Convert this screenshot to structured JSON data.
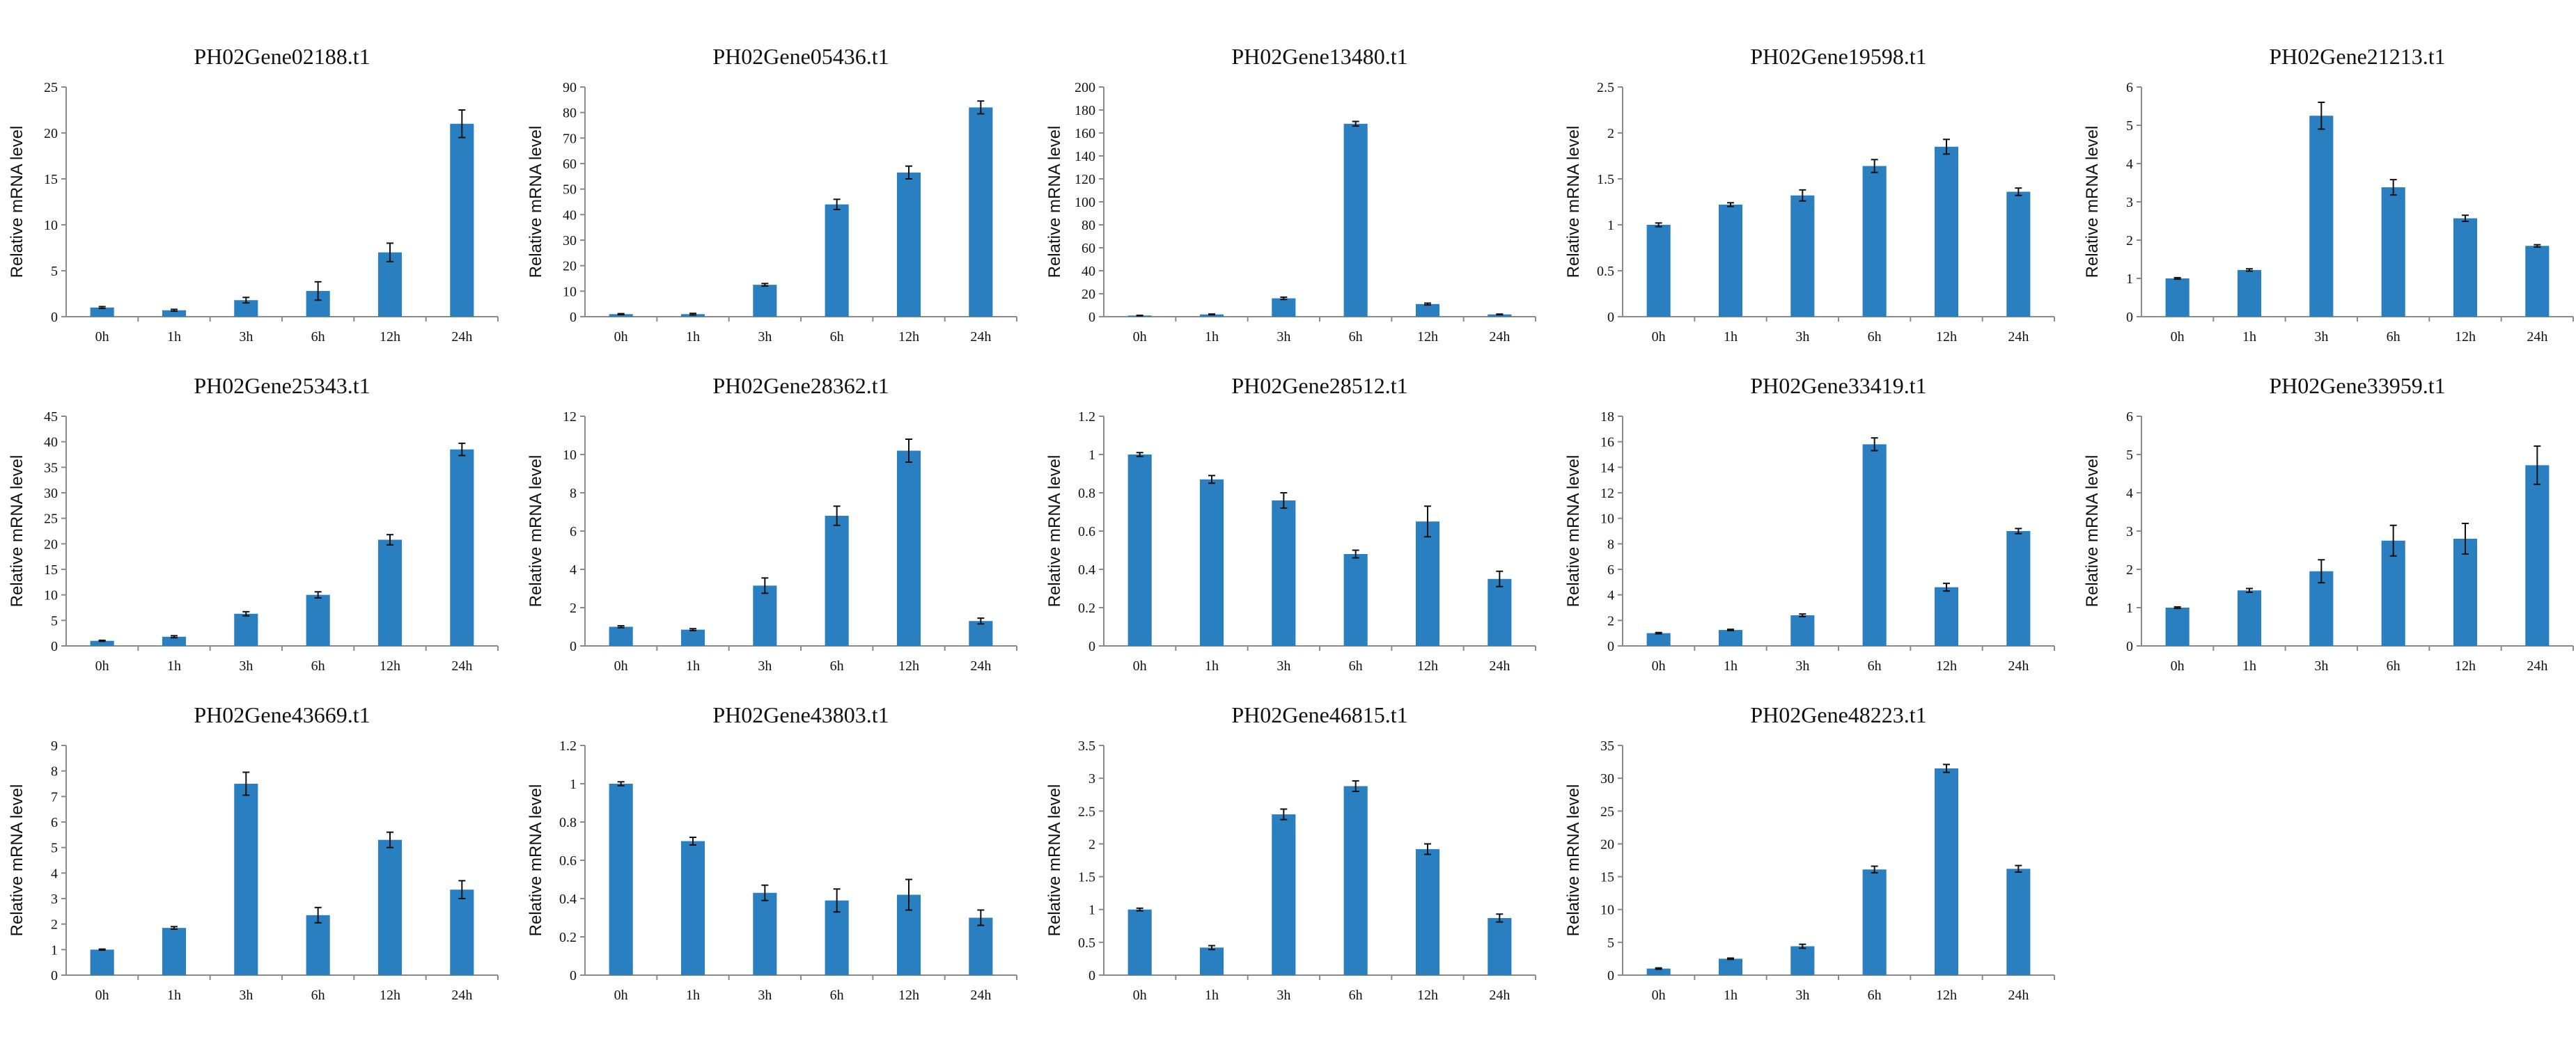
{
  "colors": {
    "bar": "#2a7fc1",
    "axis": "#8a8a8a",
    "text": "#111111"
  },
  "chart_data": [
    {
      "type": "bar",
      "title": "PH02Gene02188.t1",
      "ylabel": "Relative mRNA level",
      "xlabel": "",
      "categories": [
        "0h",
        "1h",
        "3h",
        "6h",
        "12h",
        "24h"
      ],
      "values": [
        1.0,
        0.7,
        1.8,
        2.8,
        7.0,
        21.0
      ],
      "errors": [
        0.1,
        0.1,
        0.3,
        1.0,
        1.0,
        1.5
      ],
      "ylim": [
        0,
        25
      ],
      "yticks": [
        0,
        5,
        10,
        15,
        20,
        25
      ],
      "ytick_labels": [
        "0",
        "5",
        "10",
        "15",
        "20",
        "25"
      ]
    },
    {
      "type": "bar",
      "title": "PH02Gene05436.t1",
      "ylabel": "Relative mRNA level",
      "xlabel": "",
      "categories": [
        "0h",
        "1h",
        "3h",
        "6h",
        "12h",
        "24h"
      ],
      "values": [
        1.0,
        1.0,
        12.5,
        44.0,
        56.5,
        82.0
      ],
      "errors": [
        0.2,
        0.3,
        0.5,
        2.0,
        2.5,
        2.5
      ],
      "ylim": [
        0,
        90
      ],
      "yticks": [
        0,
        10,
        20,
        30,
        40,
        50,
        60,
        70,
        80,
        90
      ],
      "ytick_labels": [
        "0",
        "10",
        "20",
        "30",
        "40",
        "50",
        "60",
        "70",
        "80",
        "90"
      ]
    },
    {
      "type": "bar",
      "title": "PH02Gene13480.t1",
      "ylabel": "Relative mRNA level",
      "xlabel": "",
      "categories": [
        "0h",
        "1h",
        "3h",
        "6h",
        "12h",
        "24h"
      ],
      "values": [
        1.0,
        2.0,
        16.0,
        168.0,
        11.0,
        2.0
      ],
      "errors": [
        0.2,
        0.3,
        1.0,
        2.0,
        0.8,
        0.3
      ],
      "ylim": [
        0,
        200
      ],
      "yticks": [
        0,
        20,
        40,
        60,
        80,
        100,
        120,
        140,
        160,
        180,
        200
      ],
      "ytick_labels": [
        "0",
        "20",
        "40",
        "60",
        "80",
        "100",
        "120",
        "140",
        "160",
        "180",
        "200"
      ]
    },
    {
      "type": "bar",
      "title": "PH02Gene19598.t1",
      "ylabel": "Relative mRNA level",
      "xlabel": "",
      "categories": [
        "0h",
        "1h",
        "3h",
        "6h",
        "12h",
        "24h"
      ],
      "values": [
        1.0,
        1.22,
        1.32,
        1.64,
        1.85,
        1.36
      ],
      "errors": [
        0.02,
        0.02,
        0.06,
        0.07,
        0.08,
        0.04
      ],
      "ylim": [
        0,
        2.5
      ],
      "yticks": [
        0,
        0.5,
        1,
        1.5,
        2,
        2.5
      ],
      "ytick_labels": [
        "0",
        "0.5",
        "1",
        "1.5",
        "2",
        "2.5"
      ]
    },
    {
      "type": "bar",
      "title": "PH02Gene21213.t1",
      "ylabel": "Relative mRNA level",
      "xlabel": "",
      "categories": [
        "0h",
        "1h",
        "3h",
        "6h",
        "12h",
        "24h"
      ],
      "values": [
        1.0,
        1.22,
        5.25,
        3.38,
        2.57,
        1.85
      ],
      "errors": [
        0.02,
        0.03,
        0.35,
        0.2,
        0.08,
        0.03
      ],
      "ylim": [
        0,
        6
      ],
      "yticks": [
        0,
        1,
        2,
        3,
        4,
        5,
        6
      ],
      "ytick_labels": [
        "0",
        "1",
        "2",
        "3",
        "4",
        "5",
        "6"
      ]
    },
    {
      "type": "bar",
      "title": "PH02Gene25343.t1",
      "ylabel": "Relative mRNA level",
      "xlabel": "",
      "categories": [
        "0h",
        "1h",
        "3h",
        "6h",
        "12h",
        "24h"
      ],
      "values": [
        1.0,
        1.8,
        6.3,
        10.0,
        20.8,
        38.5
      ],
      "errors": [
        0.1,
        0.2,
        0.4,
        0.6,
        1.0,
        1.2
      ],
      "ylim": [
        0,
        45
      ],
      "yticks": [
        0,
        5,
        10,
        15,
        20,
        25,
        30,
        35,
        40,
        45
      ],
      "ytick_labels": [
        "0",
        "5",
        "10",
        "15",
        "20",
        "25",
        "30",
        "35",
        "40",
        "45"
      ]
    },
    {
      "type": "bar",
      "title": "PH02Gene28362.t1",
      "ylabel": "Relative mRNA level",
      "xlabel": "",
      "categories": [
        "0h",
        "1h",
        "3h",
        "6h",
        "12h",
        "24h"
      ],
      "values": [
        1.0,
        0.85,
        3.15,
        6.8,
        10.2,
        1.3
      ],
      "errors": [
        0.05,
        0.05,
        0.4,
        0.5,
        0.6,
        0.15
      ],
      "ylim": [
        0,
        12
      ],
      "yticks": [
        0,
        2,
        4,
        6,
        8,
        10,
        12
      ],
      "ytick_labels": [
        "0",
        "2",
        "4",
        "6",
        "8",
        "10",
        "12"
      ]
    },
    {
      "type": "bar",
      "title": "PH02Gene28512.t1",
      "ylabel": "Relative mRNA level",
      "xlabel": "",
      "categories": [
        "0h",
        "1h",
        "3h",
        "6h",
        "12h",
        "24h"
      ],
      "values": [
        1.0,
        0.87,
        0.76,
        0.48,
        0.65,
        0.35
      ],
      "errors": [
        0.01,
        0.02,
        0.04,
        0.02,
        0.08,
        0.04
      ],
      "ylim": [
        0,
        1.2
      ],
      "yticks": [
        0,
        0.2,
        0.4,
        0.6,
        0.8,
        1,
        1.2
      ],
      "ytick_labels": [
        "0",
        "0.2",
        "0.4",
        "0.6",
        "0.8",
        "1",
        "1.2"
      ]
    },
    {
      "type": "bar",
      "title": "PH02Gene33419.t1",
      "ylabel": "Relative mRNA level",
      "xlabel": "",
      "categories": [
        "0h",
        "1h",
        "3h",
        "6h",
        "12h",
        "24h"
      ],
      "values": [
        1.0,
        1.25,
        2.4,
        15.8,
        4.6,
        9.0
      ],
      "errors": [
        0.05,
        0.05,
        0.1,
        0.5,
        0.3,
        0.2
      ],
      "ylim": [
        0,
        18
      ],
      "yticks": [
        0,
        2,
        4,
        6,
        8,
        10,
        12,
        14,
        16,
        18
      ],
      "ytick_labels": [
        "0",
        "2",
        "4",
        "6",
        "8",
        "10",
        "12",
        "14",
        "16",
        "18"
      ]
    },
    {
      "type": "bar",
      "title": "PH02Gene33959.t1",
      "ylabel": "Relative mRNA level",
      "xlabel": "",
      "categories": [
        "0h",
        "1h",
        "3h",
        "6h",
        "12h",
        "24h"
      ],
      "values": [
        1.0,
        1.45,
        1.95,
        2.75,
        2.8,
        4.72
      ],
      "errors": [
        0.02,
        0.05,
        0.3,
        0.4,
        0.4,
        0.5
      ],
      "ylim": [
        0,
        6
      ],
      "yticks": [
        0,
        1,
        2,
        3,
        4,
        5,
        6
      ],
      "ytick_labels": [
        "0",
        "1",
        "2",
        "3",
        "4",
        "5",
        "6"
      ]
    },
    {
      "type": "bar",
      "title": "PH02Gene43669.t1",
      "ylabel": "Relative mRNA level",
      "xlabel": "",
      "categories": [
        "0h",
        "1h",
        "3h",
        "6h",
        "12h",
        "24h"
      ],
      "values": [
        1.0,
        1.85,
        7.5,
        2.35,
        5.3,
        3.35
      ],
      "errors": [
        0.02,
        0.05,
        0.45,
        0.3,
        0.3,
        0.35
      ],
      "ylim": [
        0,
        9
      ],
      "yticks": [
        0,
        1,
        2,
        3,
        4,
        5,
        6,
        7,
        8,
        9
      ],
      "ytick_labels": [
        "0",
        "1",
        "2",
        "3",
        "4",
        "5",
        "6",
        "7",
        "8",
        "9"
      ]
    },
    {
      "type": "bar",
      "title": "PH02Gene43803.t1",
      "ylabel": "Relative mRNA level",
      "xlabel": "",
      "categories": [
        "0h",
        "1h",
        "3h",
        "6h",
        "12h",
        "24h"
      ],
      "values": [
        1.0,
        0.7,
        0.43,
        0.39,
        0.42,
        0.3
      ],
      "errors": [
        0.01,
        0.02,
        0.04,
        0.06,
        0.08,
        0.04
      ],
      "ylim": [
        0,
        1.2
      ],
      "yticks": [
        0,
        0.2,
        0.4,
        0.6,
        0.8,
        1,
        1.2
      ],
      "ytick_labels": [
        "0",
        "0.2",
        "0.4",
        "0.6",
        "0.8",
        "1",
        "1.2"
      ]
    },
    {
      "type": "bar",
      "title": "PH02Gene46815.t1",
      "ylabel": "Relative mRNA level",
      "xlabel": "",
      "categories": [
        "0h",
        "1h",
        "3h",
        "6h",
        "12h",
        "24h"
      ],
      "values": [
        1.0,
        0.42,
        2.45,
        2.88,
        1.92,
        0.87
      ],
      "errors": [
        0.02,
        0.03,
        0.08,
        0.08,
        0.08,
        0.06
      ],
      "ylim": [
        0,
        3.5
      ],
      "yticks": [
        0,
        0.5,
        1,
        1.5,
        2,
        2.5,
        3,
        3.5
      ],
      "ytick_labels": [
        "0",
        "0.5",
        "1",
        "1.5",
        "2",
        "2.5",
        "3",
        "3.5"
      ]
    },
    {
      "type": "bar",
      "title": "PH02Gene48223.t1",
      "ylabel": "Relative mRNA level",
      "xlabel": "",
      "categories": [
        "0h",
        "1h",
        "3h",
        "6h",
        "12h",
        "24h"
      ],
      "values": [
        1.0,
        2.5,
        4.4,
        16.1,
        31.5,
        16.2
      ],
      "errors": [
        0.1,
        0.1,
        0.3,
        0.5,
        0.6,
        0.5
      ],
      "ylim": [
        0,
        35
      ],
      "yticks": [
        0,
        5,
        10,
        15,
        20,
        25,
        30,
        35
      ],
      "ytick_labels": [
        "0",
        "5",
        "10",
        "15",
        "20",
        "25",
        "30",
        "35"
      ]
    }
  ]
}
